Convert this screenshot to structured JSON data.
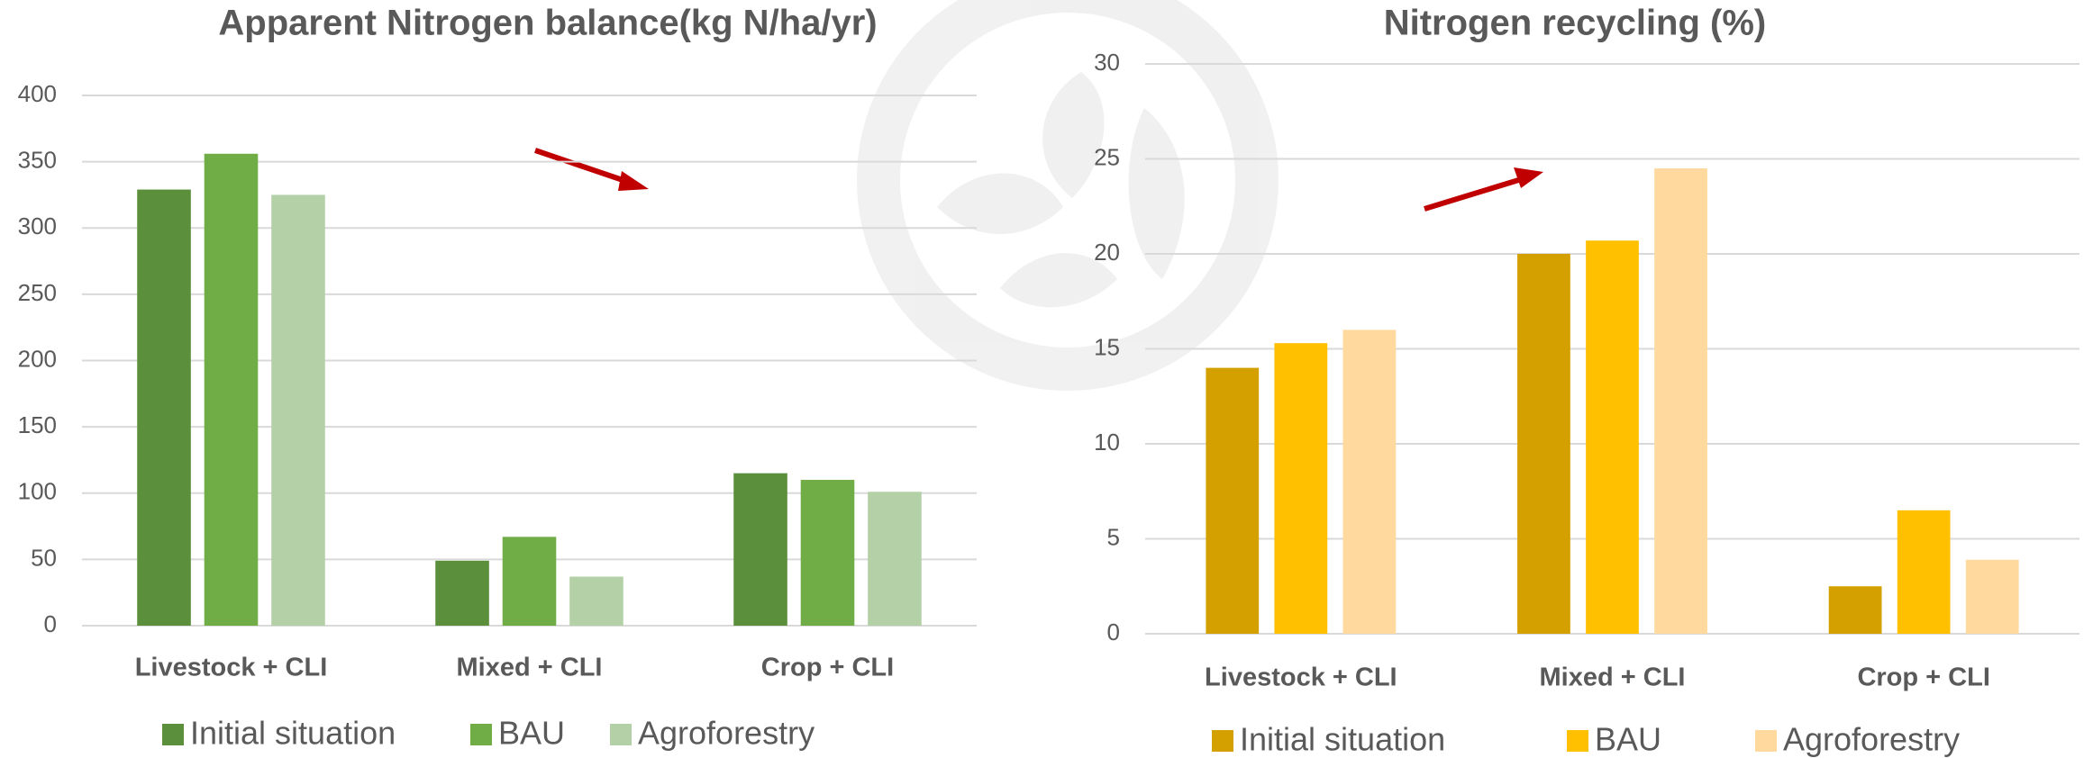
{
  "chart_data": [
    {
      "type": "bar",
      "title": "Apparent Nitrogen balance(kg N/ha/yr)",
      "categories": [
        "Livestock + CLI",
        "Mixed + CLI",
        "Crop + CLI"
      ],
      "series": [
        {
          "name": "Initial situation",
          "color": "#5b8f3b",
          "values": [
            329,
            49,
            115
          ]
        },
        {
          "name": "BAU",
          "color": "#70ad47",
          "values": [
            356,
            67,
            110
          ]
        },
        {
          "name": "Agroforestry",
          "color": "#b4d0a7",
          "values": [
            325,
            37,
            101
          ]
        }
      ],
      "ylim": [
        0,
        400
      ],
      "yticks": [
        0,
        50,
        100,
        150,
        200,
        250,
        300,
        350,
        400
      ],
      "grid": true,
      "legend": "bottom"
    },
    {
      "type": "bar",
      "title": "Nitrogen recycling (%)",
      "categories": [
        "Livestock + CLI",
        "Mixed + CLI",
        "Crop + CLI"
      ],
      "series": [
        {
          "name": "Initial situation",
          "color": "#d4a000",
          "values": [
            14,
            20,
            2.5
          ]
        },
        {
          "name": "BAU",
          "color": "#ffc000",
          "values": [
            15.3,
            20.7,
            6.5
          ]
        },
        {
          "name": "Agroforestry",
          "color": "#ffd99e",
          "values": [
            16,
            24.5,
            3.9
          ]
        }
      ],
      "ylim": [
        0,
        30
      ],
      "yticks": [
        0,
        5,
        10,
        15,
        20,
        25,
        30
      ],
      "grid": true,
      "legend": "bottom"
    }
  ]
}
